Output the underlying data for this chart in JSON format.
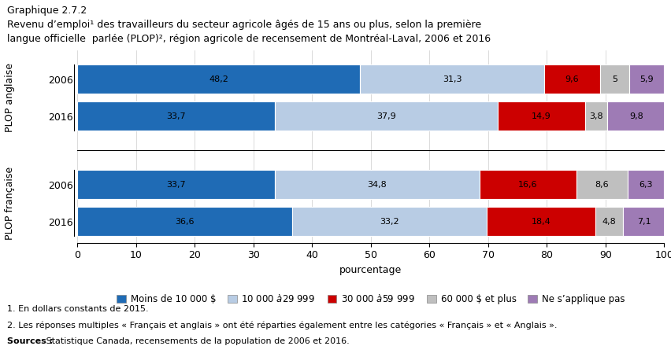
{
  "title_line1": "Graphique 2.7.2",
  "title_line2": "Revenu d’emploi¹ des travailleurs du secteur agricole âgés de 15 ans ou plus, selon la première",
  "title_line3": "langue officielle  parlée (PLOP)², région agricole de recensement de Montréal-Laval, 2006 et 2016",
  "bars": [
    {
      "label": "2006",
      "group": "PLOP anglaise",
      "values": [
        48.2,
        31.3,
        9.6,
        5.0,
        5.9
      ]
    },
    {
      "label": "2016",
      "group": "PLOP anglaise",
      "values": [
        33.7,
        37.9,
        14.9,
        3.8,
        9.8
      ]
    },
    {
      "label": "2006",
      "group": "PLOP française",
      "values": [
        33.7,
        34.8,
        16.6,
        8.6,
        6.3
      ]
    },
    {
      "label": "2016",
      "group": "PLOP française",
      "values": [
        36.6,
        33.2,
        18.4,
        4.8,
        7.1
      ]
    }
  ],
  "colors": [
    "#1F6BB5",
    "#B8CCE4",
    "#CC0000",
    "#BFBFBF",
    "#9E7BB5"
  ],
  "legend_labels": [
    "Moins de 10 000 $",
    "10 000 $ à 29 999 $",
    "30 000 $ à 59 999 $",
    "60 000 $ et plus",
    "Ne s’applique pas"
  ],
  "xlabel": "pourcentage",
  "xlim": [
    0,
    100
  ],
  "xticks": [
    0,
    10,
    20,
    30,
    40,
    50,
    60,
    70,
    80,
    90,
    100
  ],
  "footnote1": "1. En dollars constants de 2015.",
  "footnote2": "2. Les réponses multiples « Français et anglais » ont été réparties également entre les catégories « Français » et « Anglais ».",
  "footnote3_bold": "Sources :",
  "footnote3_normal": " Statistique Canada, recensements de la population de 2006 et 2016.",
  "group_labels": [
    "PLOP anglaise",
    "PLOP française"
  ],
  "bar_height": 0.55
}
